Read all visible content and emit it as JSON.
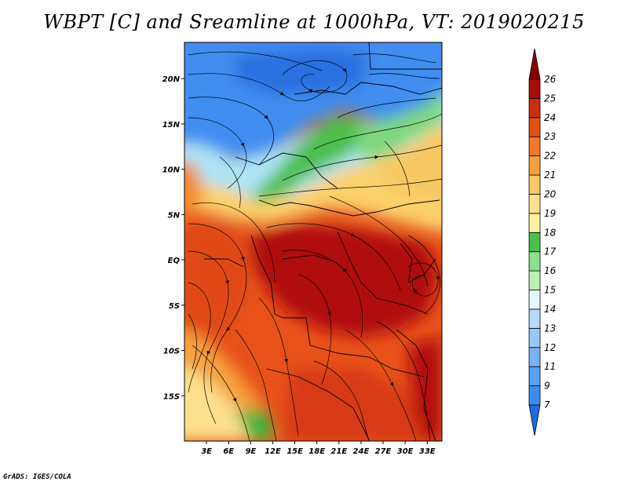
{
  "title": "WBPT [C] and Sreamline at 1000hPa, VT: 2019020215",
  "credit": "GrADS: IGES/COLA",
  "map": {
    "lat_range": [
      -20,
      24
    ],
    "lon_range": [
      0,
      35
    ],
    "lat_ticks": [
      {
        "value": 20,
        "label": "20N"
      },
      {
        "value": 15,
        "label": "15N"
      },
      {
        "value": 10,
        "label": "10N"
      },
      {
        "value": 5,
        "label": "5N"
      },
      {
        "value": 0,
        "label": "EQ"
      },
      {
        "value": -5,
        "label": "5S"
      },
      {
        "value": -10,
        "label": "10S"
      },
      {
        "value": -15,
        "label": "15S"
      }
    ],
    "lon_ticks": [
      {
        "value": 3,
        "label": "3E"
      },
      {
        "value": 6,
        "label": "6E"
      },
      {
        "value": 9,
        "label": "9E"
      },
      {
        "value": 12,
        "label": "12E"
      },
      {
        "value": 15,
        "label": "15E"
      },
      {
        "value": 18,
        "label": "18E"
      },
      {
        "value": 21,
        "label": "21E"
      },
      {
        "value": 24,
        "label": "24E"
      },
      {
        "value": 27,
        "label": "27E"
      },
      {
        "value": 30,
        "label": "30E"
      },
      {
        "value": 33,
        "label": "33E"
      }
    ]
  },
  "colorbar": {
    "levels": [
      "7",
      "9",
      "11",
      "12",
      "13",
      "14",
      "15",
      "16",
      "17",
      "18",
      "19",
      "20",
      "21",
      "22",
      "23",
      "24",
      "25",
      "26"
    ],
    "colors": [
      "#1e6ee0",
      "#3c8cf0",
      "#5aa0f5",
      "#78b4f5",
      "#96c8f8",
      "#b4dcfa",
      "#e6f8ff",
      "#bdf0b4",
      "#8ce08c",
      "#4cbe4c",
      "#fff0a0",
      "#fde08c",
      "#f8c864",
      "#f5a03c",
      "#f07828",
      "#e65014",
      "#cd2d0a",
      "#aa0a0a",
      "#8c0000"
    ]
  }
}
